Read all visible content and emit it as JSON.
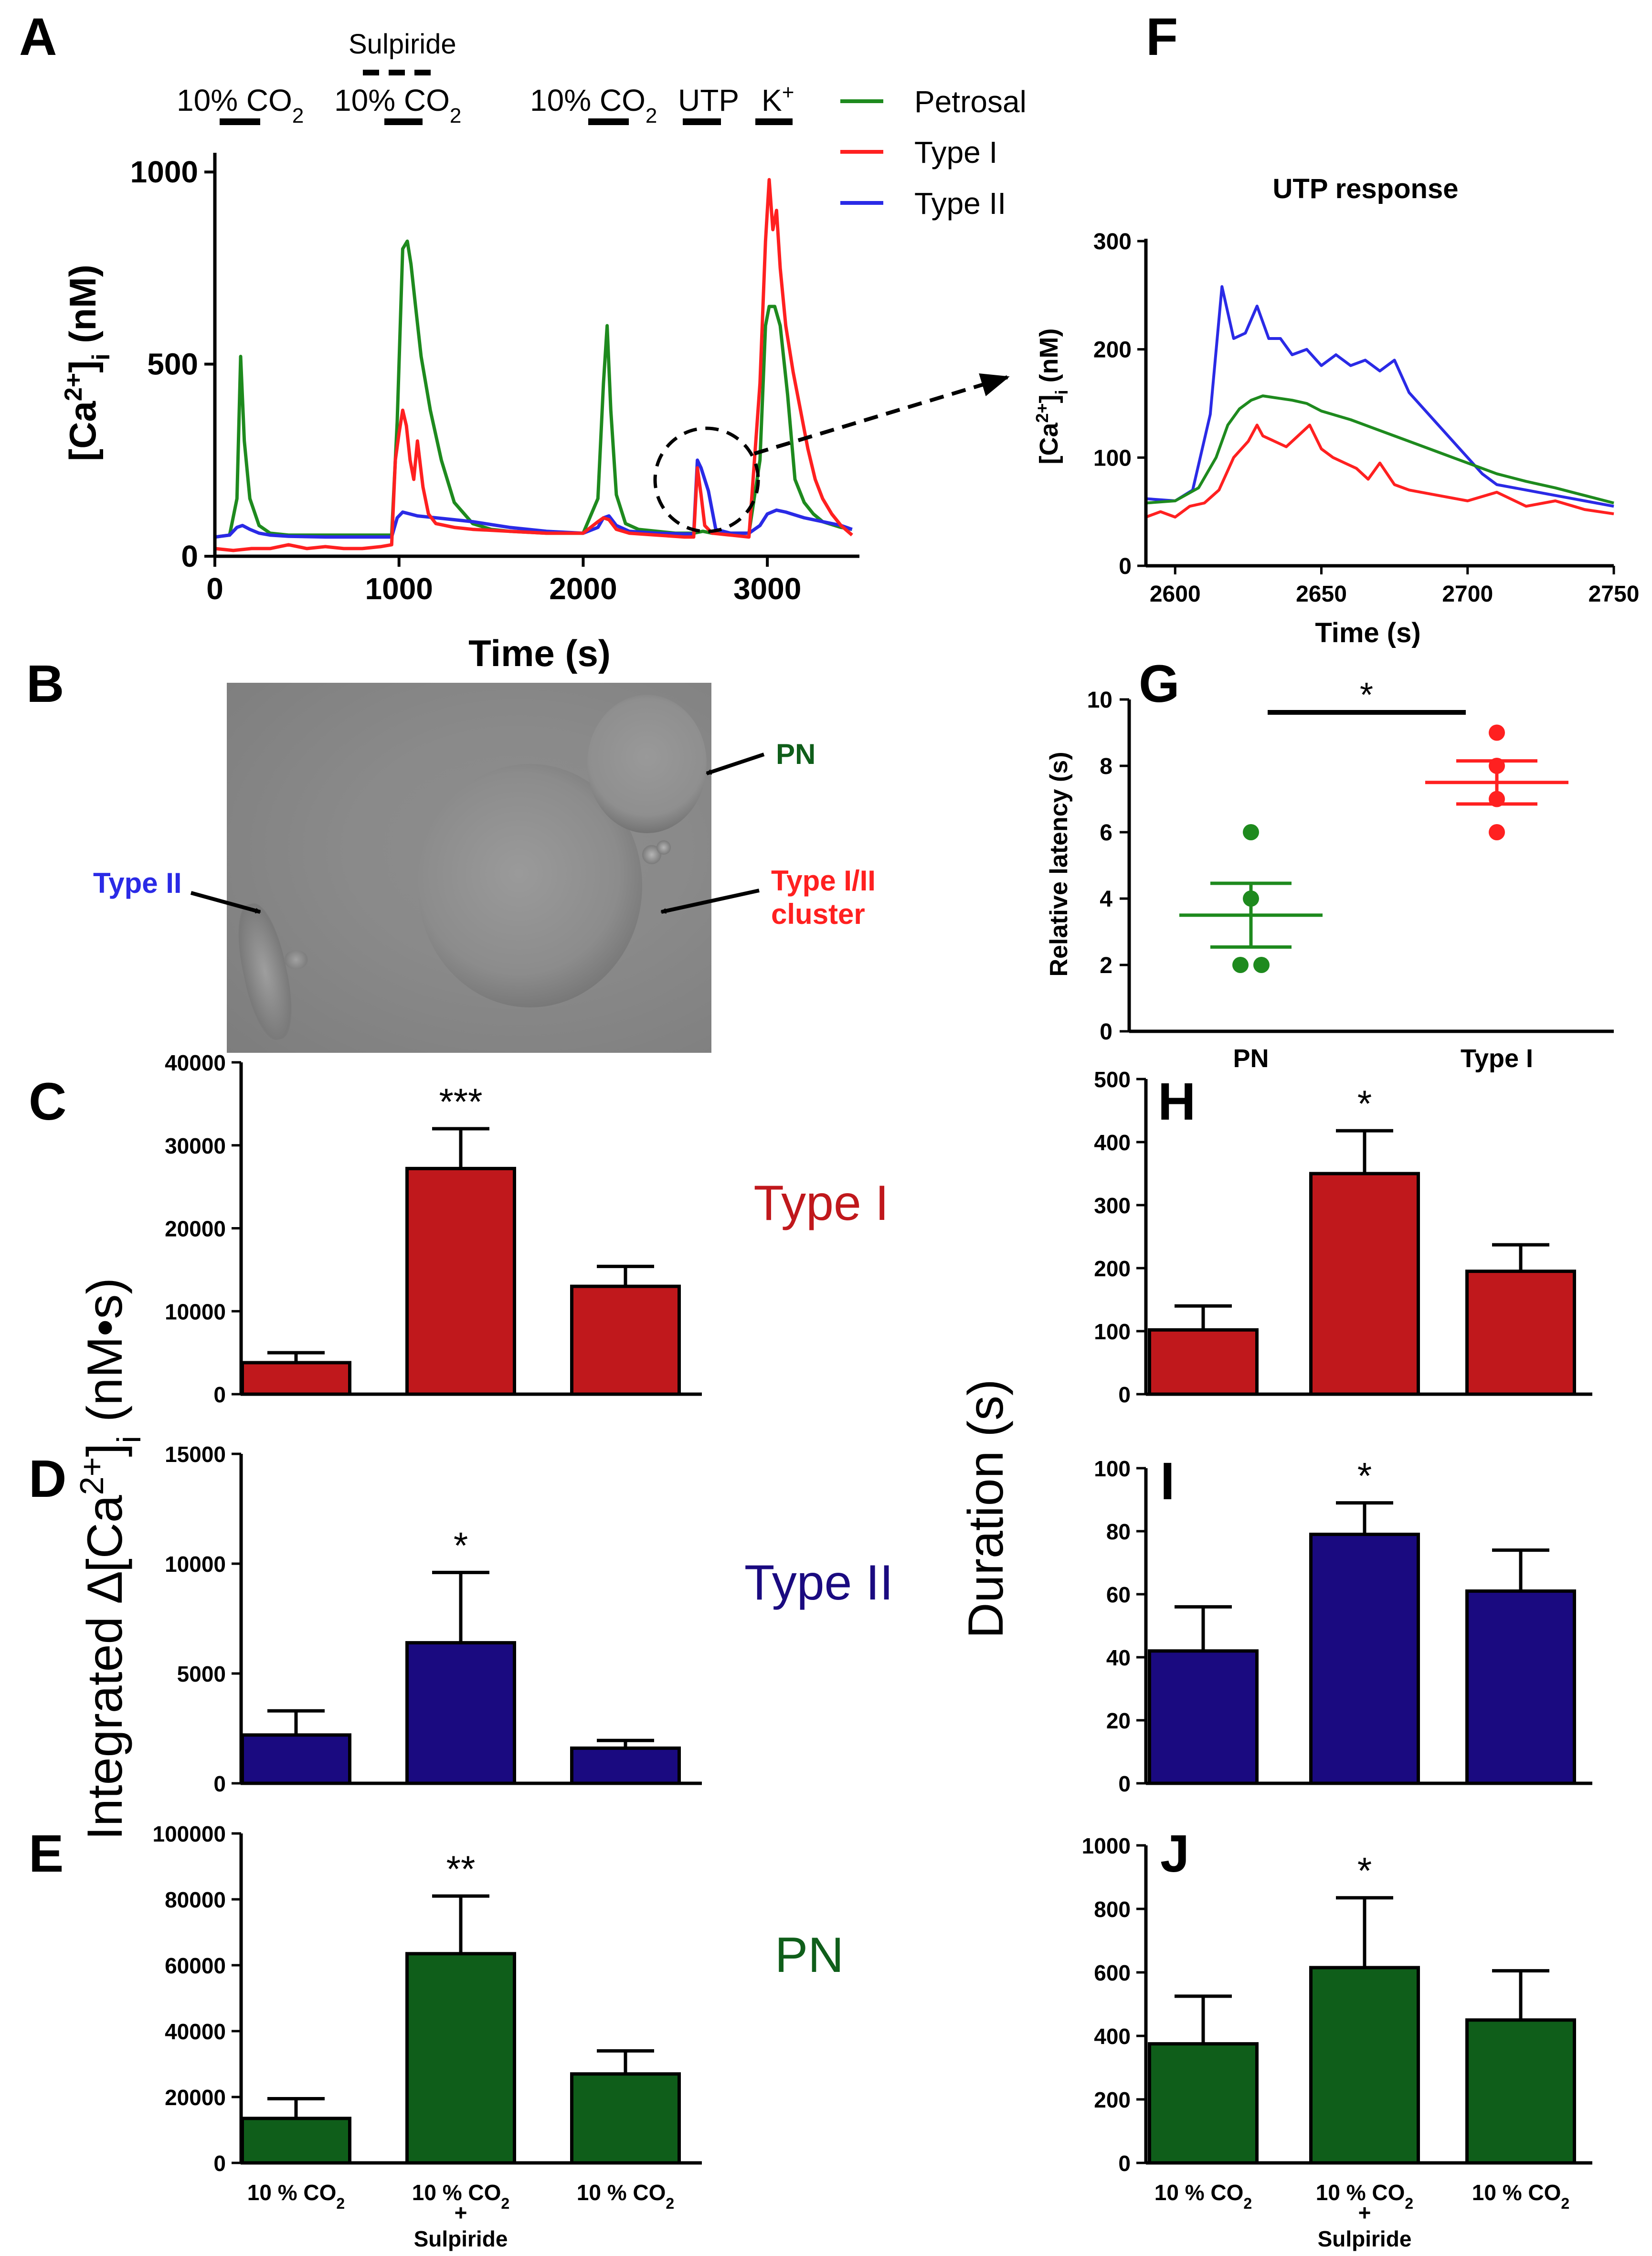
{
  "panels": {
    "A": "A",
    "B": "B",
    "C": "C",
    "D": "D",
    "E": "E",
    "F": "F",
    "G": "G",
    "H": "H",
    "I": "I",
    "J": "J"
  },
  "panel_A": {
    "ylabel_main": "[Ca",
    "ylabel_sup": "2+",
    "ylabel_tail": "]",
    "ylabel_sub": "i",
    "ylabel_unit": " (nM)",
    "xlabel": "Time (s)",
    "xticks": [
      "0",
      "1000",
      "2000",
      "3000"
    ],
    "yticks": [
      "0",
      "500",
      "1000"
    ],
    "stimuli": {
      "co2_1": "10% CO",
      "co2_1_sub": "2",
      "sulpiride": "Sulpiride",
      "co2_2": "10% CO",
      "co2_2_sub": "2",
      "co2_3": "10% CO",
      "co2_3_sub": "2",
      "utp": "UTP",
      "k": "K",
      "k_sup": "+"
    },
    "legend": [
      "Petrosal",
      "Type I",
      "Type II"
    ]
  },
  "panel_F": {
    "title": "UTP response",
    "ylabel_main": "[Ca",
    "ylabel_sup": "2+",
    "ylabel_tail": "]",
    "ylabel_sub": "i",
    "ylabel_unit": " (nM)",
    "xlabel": "Time (s)",
    "xticks": [
      "2600",
      "2650",
      "2700",
      "2750"
    ],
    "yticks": [
      "0",
      "100",
      "200",
      "300"
    ]
  },
  "panel_B": {
    "label_pn": "PN",
    "label_type2": "Type II",
    "label_cluster_1": "Type I/II",
    "label_cluster_2": "cluster"
  },
  "panel_G": {
    "ylabel": "Relative latency (s)",
    "yticks": [
      "0",
      "2",
      "4",
      "6",
      "8",
      "10"
    ],
    "categories": [
      "PN",
      "Type I"
    ],
    "significance": "*"
  },
  "left_ylabel": {
    "main": "Integrated ∆[Ca",
    "sup": "2+",
    "tail": "]",
    "sub": "i",
    "unit": " (nM•s)"
  },
  "right_ylabel": "Duration (s)",
  "bar_categories": {
    "c1_main": "10 % CO",
    "c1_sub": "2",
    "c2_main": "10 % CO",
    "c2_sub": "2",
    "c2_plus": "+",
    "c2_extra": "Sulpiride",
    "c3_main": "10 % CO",
    "c3_sub": "2"
  },
  "panel_C": {
    "cell_label": "Type I",
    "yticks": [
      "0",
      "10000",
      "20000",
      "30000",
      "40000"
    ],
    "significance": "***"
  },
  "panel_D": {
    "cell_label": "Type II",
    "yticks": [
      "0",
      "5000",
      "10000",
      "15000"
    ],
    "significance": "*"
  },
  "panel_E": {
    "cell_label": "PN",
    "yticks": [
      "0",
      "20000",
      "40000",
      "60000",
      "80000",
      "100000"
    ],
    "significance": "**"
  },
  "panel_H": {
    "yticks": [
      "0",
      "100",
      "200",
      "300",
      "400",
      "500"
    ],
    "significance": "*"
  },
  "panel_I": {
    "yticks": [
      "0",
      "20",
      "40",
      "60",
      "80",
      "100"
    ],
    "significance": "*"
  },
  "panel_J": {
    "yticks": [
      "0",
      "200",
      "400",
      "600",
      "800",
      "1000"
    ],
    "significance": "*"
  },
  "colors": {
    "petrosal": "#1e8a1e",
    "type1": "#ff2020",
    "type2": "#2a2ae6",
    "bar_type1": "#c0181c",
    "bar_type2": "#1a0a80",
    "bar_pn": "#0f5e1a",
    "label_type1": "#c0181c",
    "label_type2": "#1a0a80",
    "label_pn": "#0f5e1a"
  },
  "chart_data": [
    {
      "panel": "A",
      "type": "line",
      "title": "",
      "xlabel": "Time (s)",
      "ylabel": "[Ca2+]i (nM)",
      "xlim": [
        0,
        3500
      ],
      "ylim": [
        0,
        1050
      ],
      "series": [
        {
          "name": "Petrosal",
          "x": [
            0,
            80,
            120,
            140,
            160,
            190,
            240,
            300,
            400,
            600,
            800,
            960,
            990,
            1020,
            1045,
            1065,
            1090,
            1120,
            1170,
            1230,
            1300,
            1400,
            1500,
            1600,
            1800,
            2000,
            2080,
            2110,
            2130,
            2150,
            2180,
            2230,
            2300,
            2400,
            2500,
            2600,
            2650,
            2700,
            2800,
            2900,
            2960,
            2990,
            3010,
            3040,
            3070,
            3110,
            3150,
            3200,
            3250,
            3300,
            3400,
            3460
          ],
          "y": [
            50,
            55,
            150,
            520,
            300,
            150,
            80,
            60,
            55,
            55,
            55,
            55,
            350,
            800,
            820,
            760,
            650,
            520,
            380,
            250,
            140,
            85,
            70,
            65,
            60,
            60,
            150,
            450,
            600,
            380,
            160,
            85,
            70,
            65,
            60,
            60,
            65,
            60,
            60,
            60,
            250,
            600,
            650,
            650,
            600,
            420,
            200,
            140,
            110,
            90,
            75,
            70
          ]
        },
        {
          "name": "Type I",
          "x": [
            0,
            100,
            200,
            300,
            400,
            500,
            600,
            700,
            800,
            900,
            960,
            980,
            1000,
            1020,
            1040,
            1060,
            1080,
            1100,
            1130,
            1160,
            1200,
            1300,
            1400,
            1600,
            1800,
            2000,
            2080,
            2110,
            2140,
            2180,
            2250,
            2400,
            2550,
            2600,
            2620,
            2640,
            2660,
            2700,
            2800,
            2900,
            2960,
            2990,
            3010,
            3030,
            3050,
            3070,
            3100,
            3140,
            3180,
            3220,
            3260,
            3300,
            3350,
            3400,
            3460
          ],
          "y": [
            20,
            15,
            20,
            20,
            30,
            20,
            25,
            20,
            20,
            25,
            30,
            250,
            320,
            380,
            340,
            250,
            200,
            300,
            180,
            110,
            85,
            75,
            70,
            65,
            60,
            60,
            90,
            100,
            95,
            70,
            60,
            55,
            50,
            50,
            230,
            160,
            80,
            60,
            55,
            50,
            450,
            820,
            980,
            850,
            900,
            750,
            600,
            480,
            380,
            280,
            200,
            150,
            110,
            80,
            55
          ]
        },
        {
          "name": "Type II",
          "x": [
            0,
            80,
            120,
            150,
            190,
            240,
            300,
            400,
            600,
            800,
            960,
            990,
            1020,
            1060,
            1100,
            1200,
            1300,
            1400,
            1600,
            1800,
            2000,
            2080,
            2110,
            2140,
            2180,
            2250,
            2400,
            2550,
            2600,
            2620,
            2640,
            2680,
            2720,
            2800,
            2900,
            2960,
            3000,
            3050,
            3100,
            3200,
            3300,
            3400,
            3460
          ],
          "y": [
            50,
            55,
            75,
            80,
            70,
            60,
            55,
            52,
            50,
            50,
            50,
            100,
            115,
            110,
            105,
            100,
            95,
            90,
            75,
            65,
            60,
            75,
            100,
            105,
            80,
            65,
            60,
            58,
            58,
            250,
            230,
            170,
            70,
            60,
            60,
            80,
            110,
            120,
            115,
            100,
            90,
            80,
            70
          ]
        }
      ]
    },
    {
      "panel": "F",
      "type": "line",
      "title": "UTP response",
      "xlabel": "Time (s)",
      "ylabel": "[Ca2+]i (nM)",
      "xlim": [
        2590,
        2750
      ],
      "ylim": [
        0,
        300
      ],
      "series": [
        {
          "name": "Type II",
          "x": [
            2590,
            2600,
            2606,
            2612,
            2616,
            2620,
            2624,
            2628,
            2632,
            2636,
            2640,
            2645,
            2650,
            2655,
            2660,
            2665,
            2670,
            2675,
            2680,
            2685,
            2690,
            2695,
            2700,
            2705,
            2710,
            2720,
            2730,
            2740,
            2750
          ],
          "y": [
            62,
            60,
            70,
            140,
            258,
            210,
            215,
            240,
            210,
            210,
            195,
            200,
            185,
            195,
            185,
            190,
            180,
            190,
            160,
            145,
            130,
            115,
            100,
            85,
            75,
            70,
            65,
            60,
            55
          ]
        },
        {
          "name": "Petrosal",
          "x": [
            2590,
            2600,
            2608,
            2614,
            2618,
            2622,
            2626,
            2630,
            2635,
            2640,
            2645,
            2650,
            2660,
            2670,
            2680,
            2690,
            2700,
            2710,
            2720,
            2730,
            2740,
            2750
          ],
          "y": [
            58,
            60,
            72,
            100,
            130,
            145,
            153,
            157,
            155,
            153,
            150,
            143,
            135,
            125,
            115,
            105,
            95,
            85,
            78,
            72,
            65,
            58
          ]
        },
        {
          "name": "Type I",
          "x": [
            2590,
            2595,
            2600,
            2605,
            2610,
            2615,
            2620,
            2625,
            2628,
            2630,
            2634,
            2638,
            2642,
            2646,
            2650,
            2654,
            2658,
            2662,
            2666,
            2670,
            2675,
            2680,
            2690,
            2700,
            2710,
            2720,
            2730,
            2740,
            2750
          ],
          "y": [
            45,
            50,
            45,
            55,
            58,
            70,
            100,
            115,
            130,
            120,
            115,
            110,
            120,
            130,
            108,
            100,
            95,
            90,
            80,
            95,
            75,
            70,
            65,
            60,
            68,
            55,
            60,
            52,
            48
          ]
        }
      ]
    },
    {
      "panel": "G",
      "type": "scatter",
      "ylabel": "Relative latency (s)",
      "ylim": [
        0,
        10
      ],
      "categories": [
        "PN",
        "Type I"
      ],
      "series": [
        {
          "name": "PN",
          "points": [
            6,
            4,
            2,
            2
          ],
          "mean": 3.5,
          "sem": 0.96
        },
        {
          "name": "Type I",
          "points": [
            9,
            8,
            7,
            6
          ],
          "mean": 7.5,
          "sem": 0.65
        }
      ]
    },
    {
      "panel": "C",
      "type": "bar",
      "categories": [
        "10 % CO2",
        "10 % CO2 + Sulpiride",
        "10 % CO2"
      ],
      "values": [
        3800,
        27200,
        13000
      ],
      "errors": [
        1200,
        4800,
        2400
      ],
      "ylabel": "Integrated ∆[Ca2+]i (nM•s)",
      "ylim": [
        0,
        40000
      ],
      "series_name": "Type I"
    },
    {
      "panel": "D",
      "type": "bar",
      "categories": [
        "10 % CO2",
        "10 % CO2 + Sulpiride",
        "10 % CO2"
      ],
      "values": [
        2200,
        6400,
        1600
      ],
      "errors": [
        1100,
        3200,
        350
      ],
      "ylabel": "Integrated ∆[Ca2+]i (nM•s)",
      "ylim": [
        0,
        15000
      ],
      "series_name": "Type II"
    },
    {
      "panel": "E",
      "type": "bar",
      "categories": [
        "10 % CO2",
        "10 % CO2 + Sulpiride",
        "10 % CO2"
      ],
      "values": [
        13500,
        63500,
        27000
      ],
      "errors": [
        6000,
        17500,
        7000
      ],
      "ylabel": "Integrated ∆[Ca2+]i (nM•s)",
      "ylim": [
        0,
        100000
      ],
      "series_name": "PN"
    },
    {
      "panel": "H",
      "type": "bar",
      "categories": [
        "10 % CO2",
        "10 % CO2 + Sulpiride",
        "10 % CO2"
      ],
      "values": [
        102,
        350,
        195
      ],
      "errors": [
        38,
        68,
        42
      ],
      "ylabel": "Duration (s)",
      "ylim": [
        0,
        500
      ],
      "series_name": "Type I"
    },
    {
      "panel": "I",
      "type": "bar",
      "categories": [
        "10 % CO2",
        "10 % CO2 + Sulpiride",
        "10 % CO2"
      ],
      "values": [
        42,
        79,
        61
      ],
      "errors": [
        14,
        10,
        13
      ],
      "ylabel": "Duration (s)",
      "ylim": [
        0,
        100
      ],
      "series_name": "Type II"
    },
    {
      "panel": "J",
      "type": "bar",
      "categories": [
        "10 % CO2",
        "10 % CO2 + Sulpiride",
        "10 % CO2"
      ],
      "values": [
        375,
        615,
        450
      ],
      "errors": [
        150,
        220,
        155
      ],
      "ylabel": "Duration (s)",
      "ylim": [
        0,
        1000
      ],
      "series_name": "PN"
    }
  ]
}
